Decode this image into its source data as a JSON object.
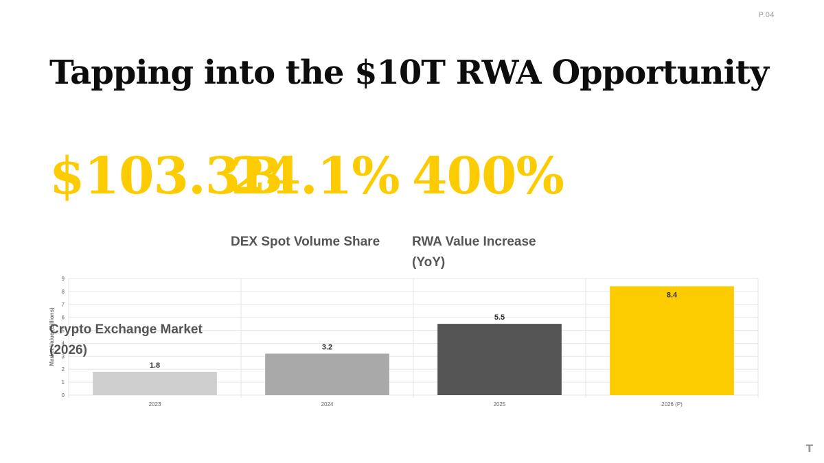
{
  "page_number": "P.04",
  "title": "Tapping into the $10T RWA Opportunity",
  "stats": [
    {
      "value": "$103.3B",
      "label": "Crypto Exchange Market (2026)"
    },
    {
      "value": "24.1%",
      "label": "DEX Spot Volume Share"
    },
    {
      "value": "400%",
      "label": "RWA Value Increase (YoY)"
    }
  ],
  "colors": {
    "accent": "#fdcc00",
    "title": "#0d0d0d",
    "label": "#555555"
  },
  "corner_logo": "T",
  "chart_data": {
    "type": "bar",
    "categories": [
      "2023",
      "2024",
      "2025",
      "2026 (P)"
    ],
    "values": [
      1.8,
      3.2,
      5.5,
      8.4
    ],
    "data_labels": [
      "1.8",
      "3.2",
      "5.5",
      "8.4"
    ],
    "bar_colors": [
      "#cfcfcf",
      "#a9a9a9",
      "#555555",
      "#fdcc00"
    ],
    "ylabel": "Market Value (Billions)",
    "xlabel": "",
    "ylim": [
      0,
      9
    ],
    "yticks": [
      "0",
      "1",
      "2",
      "3",
      "4",
      "5",
      "6",
      "7",
      "8",
      "9"
    ],
    "grid": true,
    "legend": "none"
  }
}
